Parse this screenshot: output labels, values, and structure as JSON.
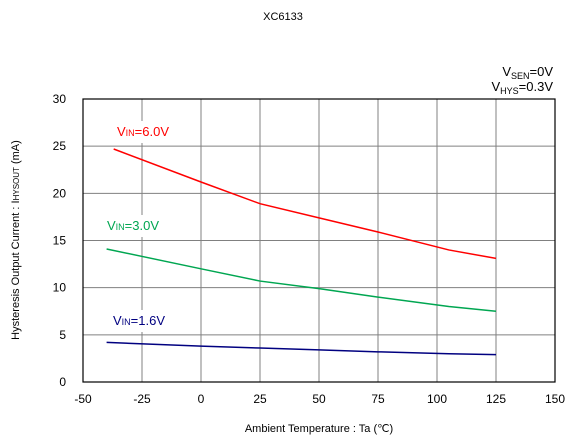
{
  "chart_data": {
    "type": "line",
    "title": "XC6133",
    "conditions": [
      {
        "main": "V",
        "sub": "SEN",
        "rest": "=0V"
      },
      {
        "main": "V",
        "sub": "HYS",
        "rest": "=0.3V"
      }
    ],
    "xlabel": "Ambient Temperature : Ta (℃)",
    "ylabel": "Hysteresis Output Current : I",
    "ylabel_sub": "HYSOUT",
    "ylabel_unit": " (mA)",
    "xlim": [
      -50,
      150
    ],
    "ylim": [
      0,
      30
    ],
    "xticks": [
      -50,
      -25,
      0,
      25,
      50,
      75,
      100,
      125,
      150
    ],
    "yticks": [
      0,
      5,
      10,
      15,
      20,
      25,
      30
    ],
    "grid": true,
    "series": [
      {
        "name": "VIN=6.0V",
        "label_main": "V",
        "label_sub": "IN",
        "label_rest": "=6.0V",
        "color": "#ff0000",
        "x": [
          -37,
          0,
          25,
          50,
          75,
          105,
          125
        ],
        "y": [
          24.7,
          21.2,
          18.9,
          17.4,
          15.9,
          14.0,
          13.1
        ]
      },
      {
        "name": "VIN=3.0V",
        "label_main": "V",
        "label_sub": "IN",
        "label_rest": "=3.0V",
        "color": "#00a651",
        "x": [
          -40,
          0,
          25,
          50,
          75,
          105,
          125
        ],
        "y": [
          14.1,
          12.0,
          10.7,
          9.9,
          9.0,
          8.0,
          7.5
        ]
      },
      {
        "name": "VIN=1.6V",
        "label_main": "V",
        "label_sub": "IN",
        "label_rest": "=1.6V",
        "color": "#000080",
        "x": [
          -40,
          0,
          25,
          50,
          75,
          105,
          125
        ],
        "y": [
          4.2,
          3.8,
          3.6,
          3.4,
          3.2,
          3.0,
          2.9
        ]
      }
    ]
  }
}
